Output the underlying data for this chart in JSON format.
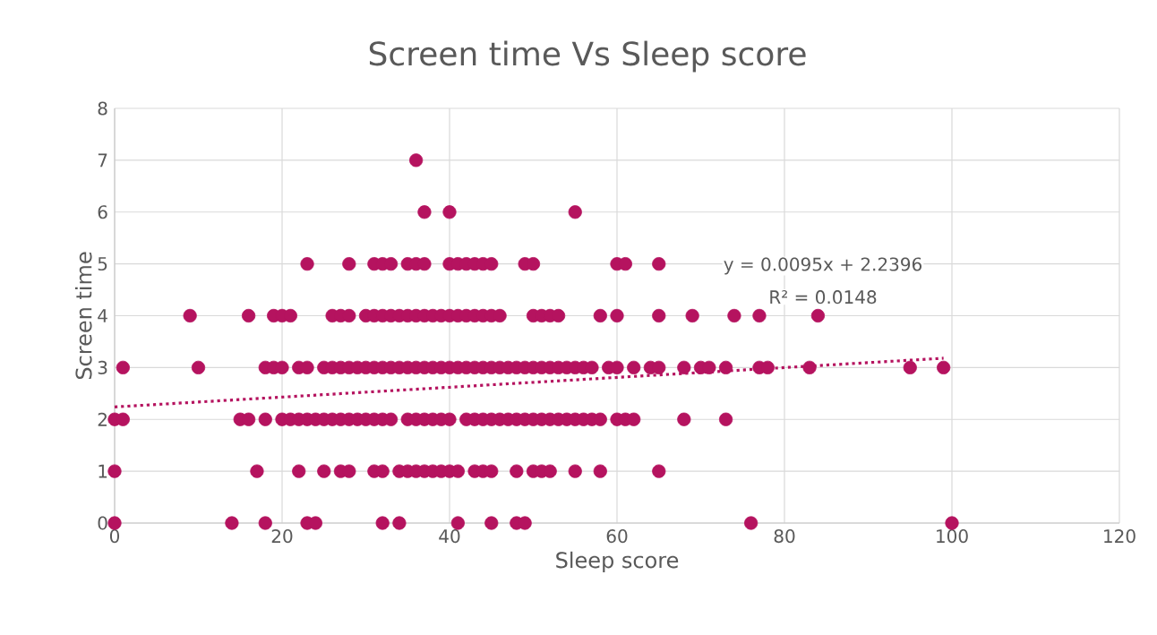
{
  "chart_data": {
    "type": "scatter",
    "title": "Screen time Vs Sleep score",
    "xlabel": "Sleep score",
    "ylabel": "Screen time",
    "xlim": [
      0,
      120
    ],
    "xticks": [
      0,
      20,
      40,
      60,
      80,
      100,
      120
    ],
    "ylim": [
      0,
      8
    ],
    "yticks": [
      0,
      1,
      2,
      3,
      4,
      5,
      6,
      7,
      8
    ],
    "grid": true,
    "marker": "circle",
    "annotations": [
      "y = 0.0095x + 2.2396",
      "R² = 0.0148"
    ],
    "series": [
      {
        "color": "#b5135f",
        "x": [
          0,
          14,
          18,
          23,
          24,
          32,
          34,
          41,
          45,
          48,
          49,
          76,
          100
        ],
        "values": [
          0,
          0,
          0,
          0,
          0,
          0,
          0,
          0,
          0,
          0,
          0,
          0,
          0
        ]
      },
      {
        "color": "#b5135f",
        "x": [
          0,
          17,
          22,
          25,
          27,
          28,
          31,
          32,
          34,
          35,
          36,
          37,
          38,
          39,
          40,
          41,
          43,
          44,
          45,
          48,
          50,
          51,
          52,
          55,
          58,
          65
        ],
        "values": [
          1,
          1,
          1,
          1,
          1,
          1,
          1,
          1,
          1,
          1,
          1,
          1,
          1,
          1,
          1,
          1,
          1,
          1,
          1,
          1,
          1,
          1,
          1,
          1,
          1,
          1
        ]
      },
      {
        "color": "#b5135f",
        "x": [
          0,
          1,
          15,
          16,
          18,
          20,
          21,
          22,
          23,
          24,
          25,
          26,
          27,
          28,
          29,
          30,
          31,
          32,
          33,
          35,
          36,
          37,
          38,
          39,
          40,
          42,
          43,
          44,
          45,
          46,
          47,
          48,
          49,
          50,
          51,
          52,
          53,
          54,
          55,
          56,
          57,
          58,
          60,
          61,
          62,
          68,
          73
        ],
        "values": [
          2,
          2,
          2,
          2,
          2,
          2,
          2,
          2,
          2,
          2,
          2,
          2,
          2,
          2,
          2,
          2,
          2,
          2,
          2,
          2,
          2,
          2,
          2,
          2,
          2,
          2,
          2,
          2,
          2,
          2,
          2,
          2,
          2,
          2,
          2,
          2,
          2,
          2,
          2,
          2,
          2,
          2,
          2,
          2,
          2,
          2,
          2
        ]
      },
      {
        "color": "#b5135f",
        "x": [
          1,
          10,
          18,
          19,
          20,
          22,
          23,
          25,
          26,
          27,
          28,
          29,
          30,
          31,
          32,
          33,
          34,
          35,
          36,
          37,
          38,
          39,
          40,
          41,
          42,
          43,
          44,
          45,
          46,
          47,
          48,
          49,
          50,
          51,
          52,
          53,
          54,
          55,
          56,
          57,
          59,
          60,
          62,
          64,
          65,
          68,
          70,
          71,
          73,
          77,
          78,
          83,
          95,
          99
        ],
        "values": [
          3,
          3,
          3,
          3,
          3,
          3,
          3,
          3,
          3,
          3,
          3,
          3,
          3,
          3,
          3,
          3,
          3,
          3,
          3,
          3,
          3,
          3,
          3,
          3,
          3,
          3,
          3,
          3,
          3,
          3,
          3,
          3,
          3,
          3,
          3,
          3,
          3,
          3,
          3,
          3,
          3,
          3,
          3,
          3,
          3,
          3,
          3,
          3,
          3,
          3,
          3,
          3,
          3,
          3
        ]
      },
      {
        "color": "#b5135f",
        "x": [
          9,
          16,
          19,
          20,
          21,
          26,
          27,
          28,
          30,
          31,
          32,
          33,
          34,
          35,
          36,
          37,
          38,
          39,
          40,
          41,
          42,
          43,
          44,
          45,
          46,
          50,
          51,
          52,
          53,
          58,
          60,
          65,
          69,
          74,
          77,
          84
        ],
        "values": [
          4,
          4,
          4,
          4,
          4,
          4,
          4,
          4,
          4,
          4,
          4,
          4,
          4,
          4,
          4,
          4,
          4,
          4,
          4,
          4,
          4,
          4,
          4,
          4,
          4,
          4,
          4,
          4,
          4,
          4,
          4,
          4,
          4,
          4,
          4,
          4
        ]
      },
      {
        "color": "#b5135f",
        "x": [
          23,
          28,
          31,
          32,
          33,
          35,
          36,
          37,
          40,
          41,
          42,
          43,
          44,
          45,
          49,
          50,
          60,
          61,
          65
        ],
        "values": [
          5,
          5,
          5,
          5,
          5,
          5,
          5,
          5,
          5,
          5,
          5,
          5,
          5,
          5,
          5,
          5,
          5,
          5,
          5
        ]
      },
      {
        "color": "#b5135f",
        "x": [
          37,
          40,
          55
        ],
        "values": [
          6,
          6,
          6
        ]
      },
      {
        "color": "#b5135f",
        "x": [
          36
        ],
        "values": [
          7
        ]
      },
      {
        "type": "line",
        "color": "#b5135f",
        "line_style": "dotted",
        "marker": "none",
        "x": [
          0,
          99
        ],
        "values": [
          2.24,
          3.18
        ]
      }
    ]
  }
}
